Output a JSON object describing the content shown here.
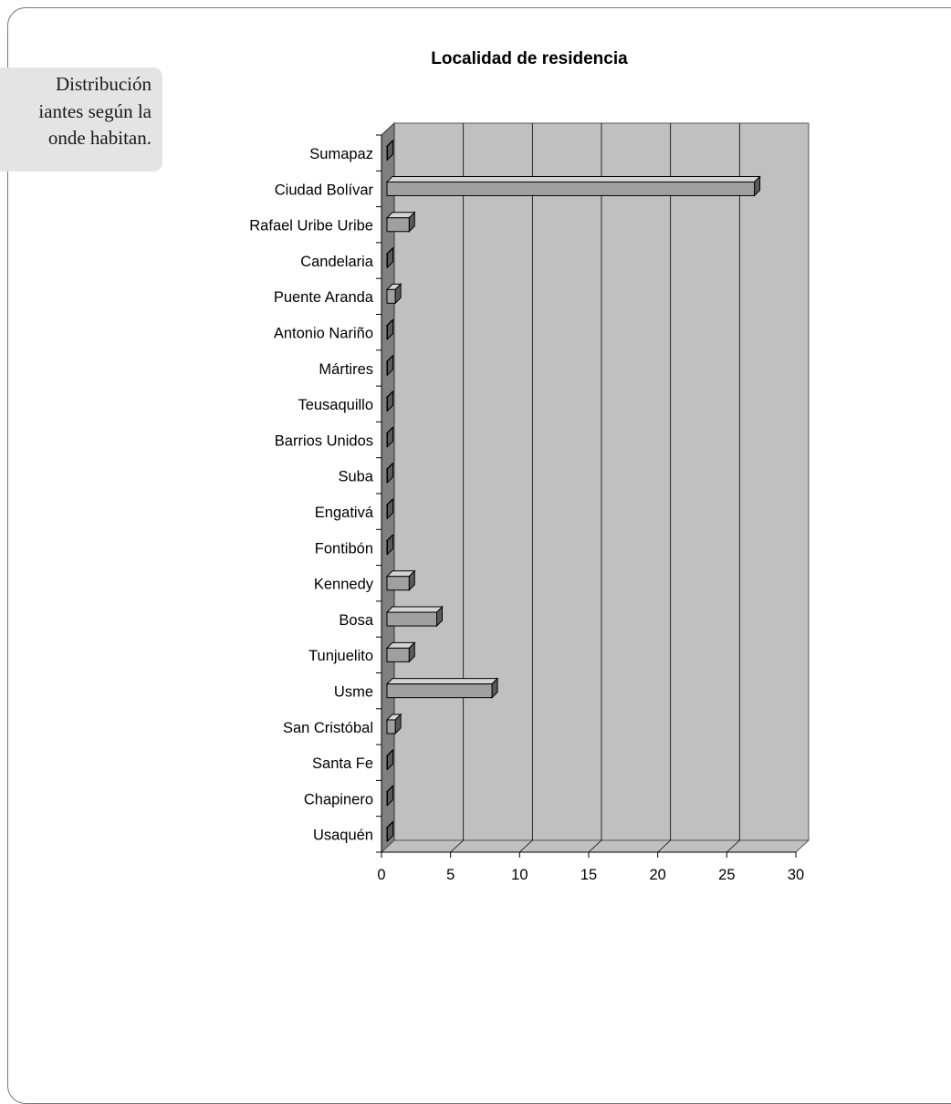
{
  "caption": {
    "lines": [
      "Distribución",
      "iantes según la",
      "onde habitan."
    ]
  },
  "chart_data": {
    "type": "bar",
    "orientation": "horizontal",
    "title": "Localidad de residencia",
    "categories": [
      "Sumapaz",
      "Ciudad Bolívar",
      "Rafael Uribe Uribe",
      "Candelaria",
      "Puente Aranda",
      "Antonio Nariño",
      "Mártires",
      "Teusaquillo",
      "Barrios Unidos",
      "Suba",
      "Engativá",
      "Fontibón",
      "Kennedy",
      "Bosa",
      "Tunjuelito",
      "Usme",
      "San Cristóbal",
      "Santa Fe",
      "Chapinero",
      "Usaquén"
    ],
    "values": [
      0,
      27,
      2,
      0,
      1,
      0,
      0,
      0,
      0,
      0,
      0,
      0,
      2,
      4,
      2,
      8,
      1,
      0,
      0,
      0
    ],
    "xlim": [
      0,
      30
    ],
    "xticks": [
      0,
      5,
      10,
      15,
      20,
      25,
      30
    ],
    "grid": true,
    "legend": "none",
    "colors": {
      "wall": "#c0c0c0",
      "left_wall": "#808080",
      "bar_front": "#a0a0a0",
      "bar_top": "#d4d4d4",
      "bar_side": "#5a5a5a",
      "grid": "#000000"
    }
  }
}
